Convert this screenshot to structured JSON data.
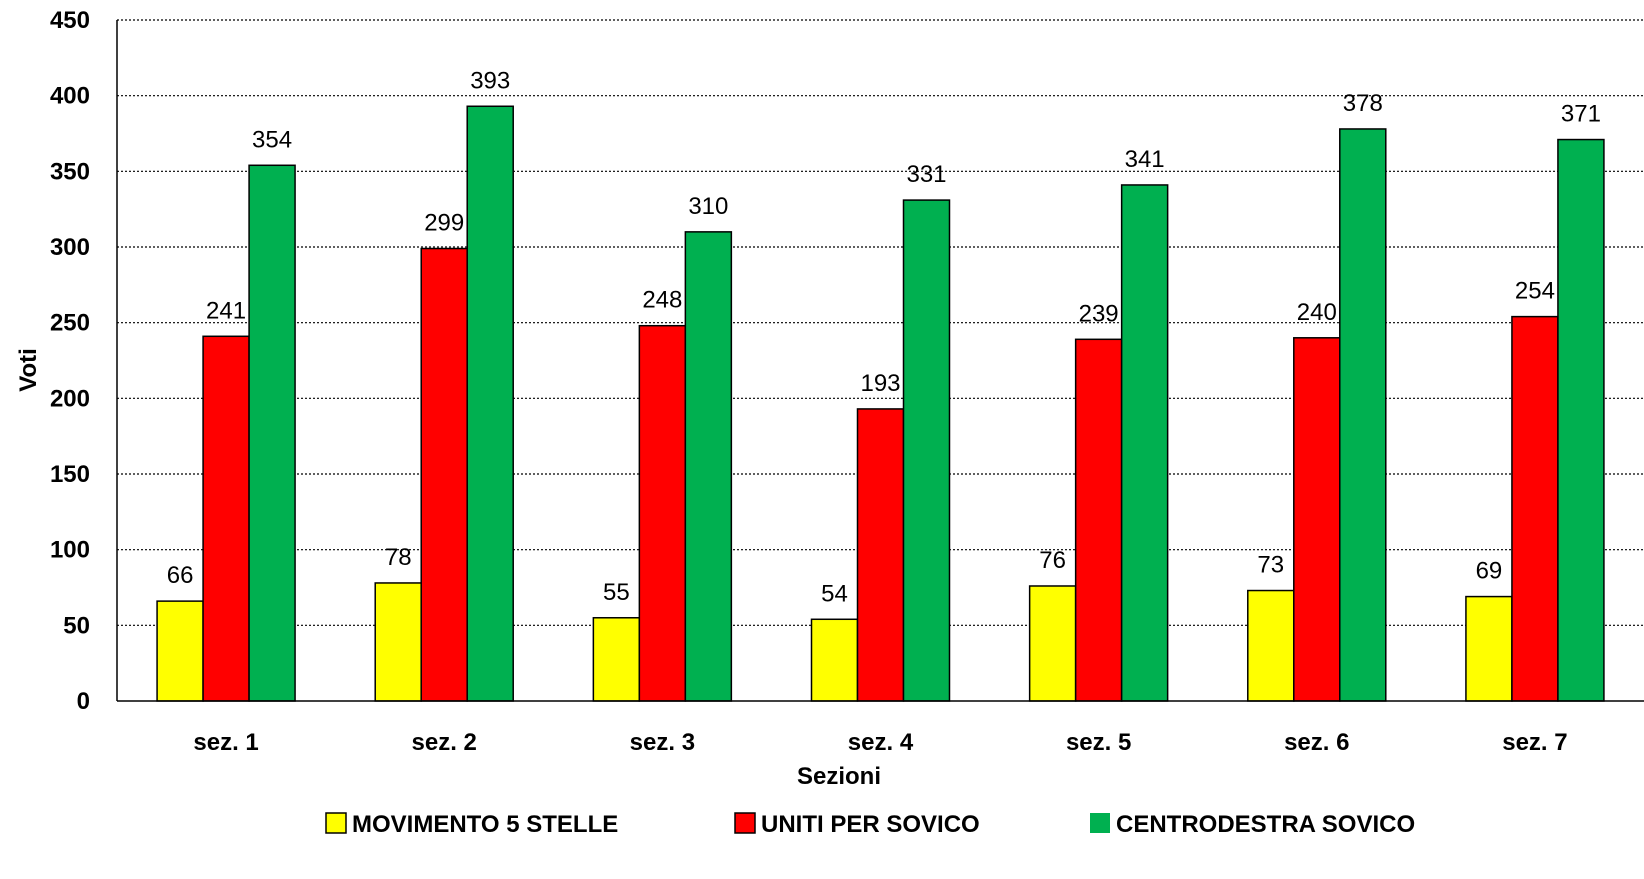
{
  "chart_data": {
    "type": "bar",
    "title": "",
    "xlabel": "Sezioni",
    "ylabel": "Voti",
    "ylim": [
      0,
      450
    ],
    "yticks": [
      0,
      50,
      100,
      150,
      200,
      250,
      300,
      350,
      400,
      450
    ],
    "grid": true,
    "legend_position": "bottom",
    "categories": [
      "sez. 1",
      "sez. 2",
      "sez. 3",
      "sez. 4",
      "sez. 5",
      "sez. 6",
      "sez. 7"
    ],
    "series": [
      {
        "name": "MOVIMENTO 5 STELLE",
        "color": "#ffff00",
        "values": [
          66,
          78,
          55,
          54,
          76,
          73,
          69
        ]
      },
      {
        "name": "UNITI PER SOVICO",
        "color": "#ff0000",
        "values": [
          241,
          299,
          248,
          193,
          239,
          240,
          254
        ]
      },
      {
        "name": "CENTRODESTRA SOVICO",
        "color": "#00b050",
        "values": [
          354,
          393,
          310,
          331,
          341,
          378,
          371
        ]
      }
    ]
  }
}
